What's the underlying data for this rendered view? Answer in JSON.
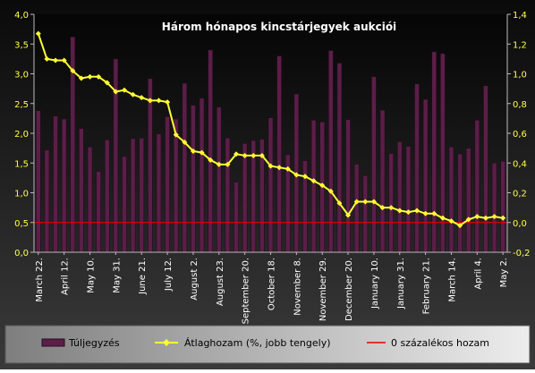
{
  "colors": {
    "bar_fill": "#5A1F47",
    "bar_edge": "#2A0820",
    "line": "#FFFF33",
    "zero_line": "#E00000",
    "axis_text": "#FFFF44",
    "title_text": "#FFFFFF"
  },
  "chart_data": {
    "type": "bar",
    "title": "Három hónapos kincstárjegyek aukciói",
    "grid": false,
    "legend_position": "bottom",
    "ylim_left": [
      0,
      4
    ],
    "ylim_right": [
      -0.2,
      1.4
    ],
    "y_ticks_left": [
      "0,0",
      "0,5",
      "1,0",
      "1,5",
      "2,0",
      "2,5",
      "3,0",
      "3,5",
      "4,0"
    ],
    "y_ticks_right": [
      "-0,2",
      "0,0",
      "0,2",
      "0,4",
      "0,6",
      "0,8",
      "1,0",
      "1,2",
      "1,4"
    ],
    "x_tick_labels": [
      "March 22.",
      "April 12.",
      "May 10.",
      "May 31.",
      "June 21.",
      "July 12.",
      "August 2.",
      "August 23.",
      "September 20.",
      "October 18.",
      "November 8.",
      "November 29.",
      "December 20.",
      "January 10.",
      "January 31.",
      "February 21.",
      "March 14.",
      "April 4.",
      "May 2."
    ],
    "series": [
      {
        "name": "Túljegyzés",
        "axis": "left",
        "type": "bar",
        "values": [
          2.38,
          1.72,
          2.29,
          2.24,
          3.62,
          2.08,
          1.77,
          1.36,
          1.89,
          3.25,
          1.61,
          1.91,
          1.92,
          2.92,
          1.99,
          2.28,
          2.24,
          2.84,
          2.47,
          2.59,
          3.4,
          2.44,
          1.92,
          1.18,
          1.83,
          1.88,
          1.9,
          2.26,
          3.3,
          1.64,
          2.66,
          1.54,
          2.22,
          2.19,
          3.39,
          3.18,
          2.23,
          1.48,
          1.29,
          2.95,
          2.39,
          1.66,
          1.86,
          1.78,
          2.83,
          2.57,
          3.37,
          3.34,
          1.77,
          1.65,
          1.75,
          2.22,
          2.8,
          1.5,
          1.53
        ]
      },
      {
        "name": "Átlaghozam (%, jobb tengely)",
        "axis": "right",
        "type": "line",
        "values": [
          1.27,
          1.1,
          1.09,
          1.09,
          1.02,
          0.97,
          0.98,
          0.98,
          0.94,
          0.88,
          0.89,
          0.86,
          0.84,
          0.82,
          0.82,
          0.81,
          0.59,
          0.54,
          0.48,
          0.47,
          0.42,
          0.39,
          0.39,
          0.46,
          0.45,
          0.45,
          0.45,
          0.38,
          0.37,
          0.36,
          0.32,
          0.31,
          0.28,
          0.25,
          0.21,
          0.13,
          0.05,
          0.14,
          0.14,
          0.14,
          0.1,
          0.1,
          0.08,
          0.07,
          0.08,
          0.06,
          0.06,
          0.03,
          0.01,
          -0.02,
          0.02,
          0.04,
          0.03,
          0.04,
          0.03
        ]
      },
      {
        "name": "0 százalékos hozam",
        "axis": "right",
        "type": "line",
        "values": [
          0
        ]
      }
    ]
  }
}
